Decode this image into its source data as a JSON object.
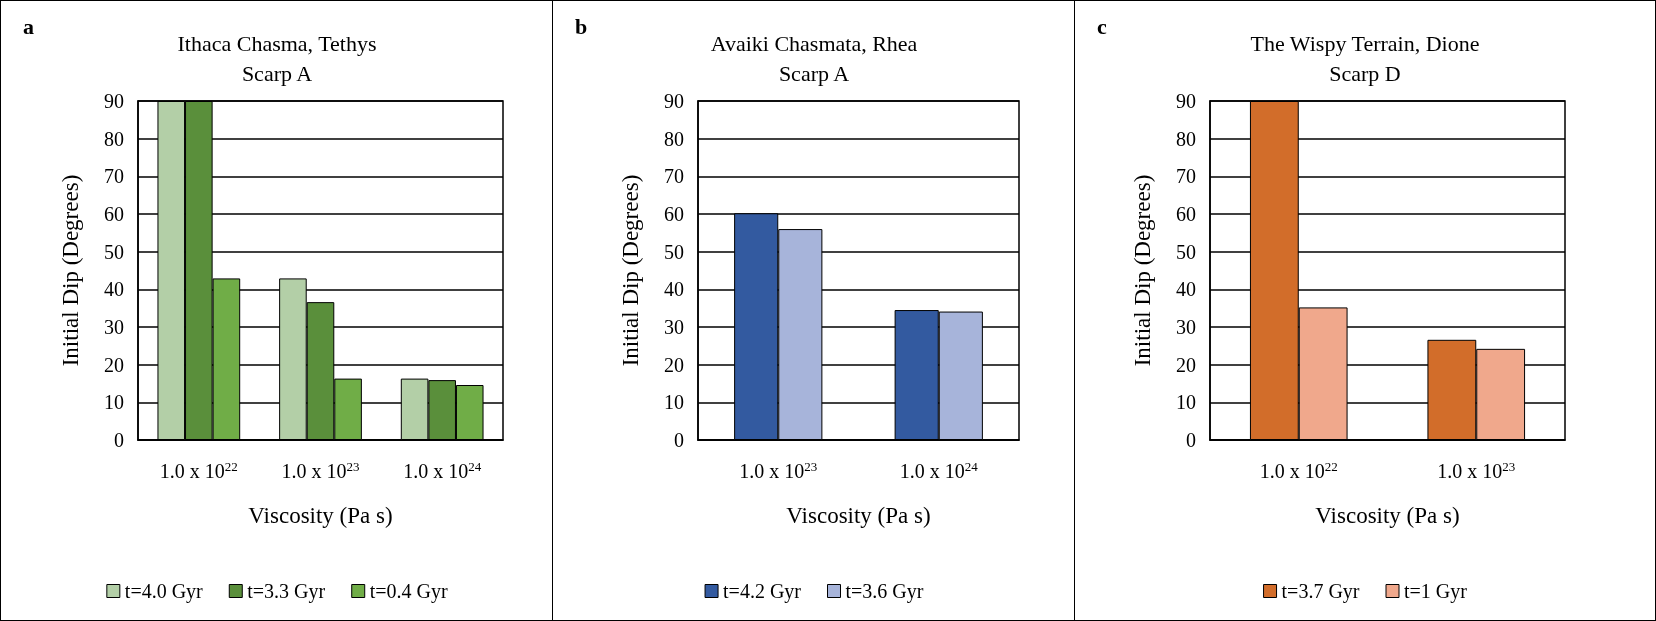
{
  "chart_data": [
    {
      "type": "bar",
      "title": "Ithaca Chasma, Tethys",
      "subtitle": "Scarp A",
      "xlabel": "Viscosity (Pa s)",
      "ylabel": "Initial Dip (Degrees)",
      "annotations": [
        "a"
      ],
      "categories": [
        "1.0 x 10$^{22}$",
        "1.0 x 10$^{23}$",
        "1.0 x 10$^{24}$"
      ],
      "series": [
        {
          "name": "t=4.0 Gyr",
          "color": "#b3cfa7",
          "values": [
            90,
            42.9,
            16.3
          ]
        },
        {
          "name": "t=3.3 Gyr",
          "color": "#5a8f3b",
          "values": [
            90,
            36.6,
            15.9
          ]
        },
        {
          "name": "t=0.4 Gyr",
          "color": "#70ad47",
          "values": [
            42.9,
            16.3,
            14.6
          ]
        }
      ],
      "ylim": [
        0,
        90
      ],
      "yticks": [
        0,
        10,
        20,
        30,
        40,
        50,
        60,
        70,
        80,
        90
      ],
      "grid": "y",
      "legend": "bottom"
    },
    {
      "type": "bar",
      "title": "Avaiki Chasmata, Rhea",
      "subtitle": "Scarp A",
      "xlabel": "Viscosity (Pa s)",
      "ylabel": "Initial Dip (Degrees)",
      "annotations": [
        "b"
      ],
      "categories": [
        "1.0 x 10$^{23}$",
        "1.0 x 10$^{24}$"
      ],
      "series": [
        {
          "name": "t=4.2 Gyr",
          "color": "#335aa0",
          "values": [
            60.2,
            34.5
          ]
        },
        {
          "name": "t=3.6 Gyr",
          "color": "#a7b4da",
          "values": [
            56.0,
            34.1
          ]
        }
      ],
      "ylim": [
        0,
        90
      ],
      "yticks": [
        0,
        10,
        20,
        30,
        40,
        50,
        60,
        70,
        80,
        90
      ],
      "grid": "y",
      "legend": "bottom"
    },
    {
      "type": "bar",
      "title": "The Wispy Terrain, Dione",
      "subtitle": "Scarp D",
      "xlabel": "Viscosity (Pa s)",
      "ylabel": "Initial Dip (Degrees)",
      "annotations": [
        "c"
      ],
      "categories": [
        "1.0 x 10$^{22}$",
        "1.0 x 10$^{23}$"
      ],
      "series": [
        {
          "name": "t=3.7 Gyr",
          "color": "#d26d2a",
          "values": [
            90,
            26.6
          ]
        },
        {
          "name": "t=1 Gyr",
          "color": "#f0a88c",
          "values": [
            35.2,
            24.2
          ]
        }
      ],
      "ylim": [
        0,
        90
      ],
      "yticks": [
        0,
        10,
        20,
        30,
        40,
        50,
        60,
        70,
        80,
        90
      ],
      "grid": "y",
      "legend": "bottom"
    }
  ]
}
